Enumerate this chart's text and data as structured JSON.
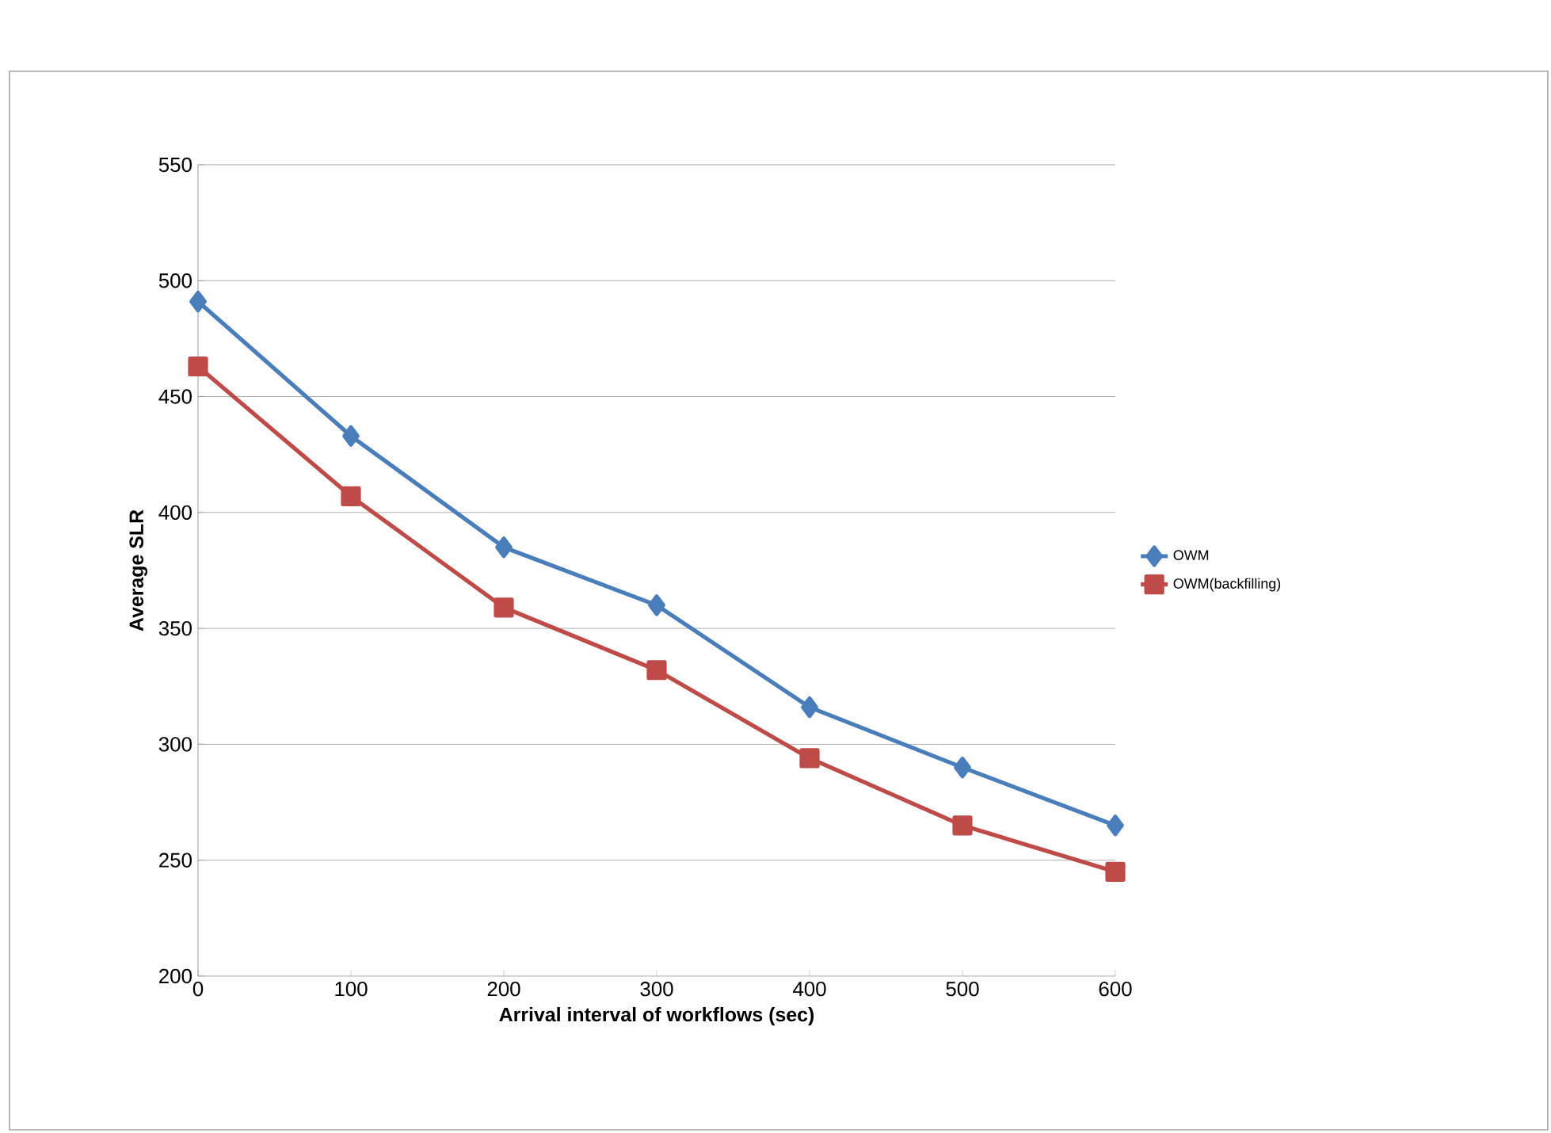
{
  "chart_data": {
    "type": "line",
    "xlabel": "Arrival interval of workflows (sec)",
    "ylabel": "Average SLR",
    "x": [
      0,
      100,
      200,
      300,
      400,
      500,
      600
    ],
    "series": [
      {
        "name": "OWM",
        "color": "#4a7ebb",
        "marker": "diamond",
        "values": [
          491,
          433,
          385,
          360,
          316,
          290,
          265
        ]
      },
      {
        "name": "OWM(backfilling)",
        "color": "#be4b48",
        "marker": "square",
        "values": [
          463,
          407,
          359,
          332,
          294,
          265,
          245
        ]
      }
    ],
    "xlim": [
      0,
      600
    ],
    "xticks": [
      0,
      100,
      200,
      300,
      400,
      500,
      600
    ],
    "ylim": [
      200,
      550
    ],
    "yticks": [
      200,
      250,
      300,
      350,
      400,
      450,
      500,
      550
    ],
    "grid": "y",
    "legend": "right",
    "line_style": "solid"
  }
}
